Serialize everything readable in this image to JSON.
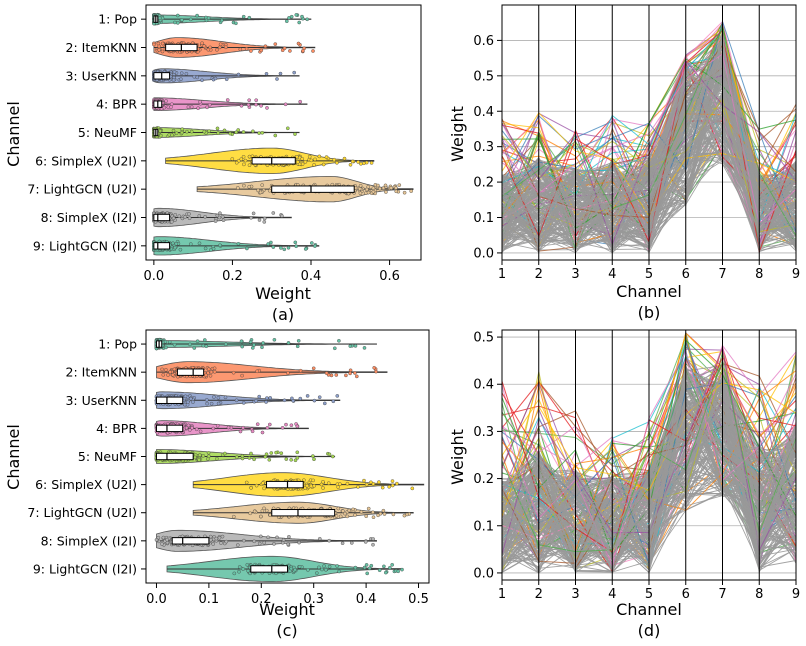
{
  "chart_data": [
    {
      "panel": "a",
      "type": "violin",
      "caption": "(a)",
      "xlabel": "Weight",
      "ylabel": "Channel",
      "xlim": [
        -0.02,
        0.68
      ],
      "xticks": [
        0.0,
        0.2,
        0.4,
        0.6
      ],
      "xtick_labels": [
        "0.0",
        "0.2",
        "0.4",
        "0.6"
      ],
      "channels": [
        {
          "label": "1: Pop",
          "color": "#66c2a5",
          "min": 0.0,
          "q1": 0.0,
          "median": 0.005,
          "q3": 0.01,
          "max": 0.4,
          "mode": 0.0,
          "width": 0.3
        },
        {
          "label": "2: ItemKNN",
          "color": "#fc8d62",
          "min": 0.0,
          "q1": 0.03,
          "median": 0.07,
          "q3": 0.11,
          "max": 0.41,
          "mode": 0.06,
          "width": 0.7
        },
        {
          "label": "3: UserKNN",
          "color": "#8da0cb",
          "min": 0.0,
          "q1": 0.0,
          "median": 0.02,
          "q3": 0.04,
          "max": 0.37,
          "mode": 0.02,
          "width": 0.5
        },
        {
          "label": "4: BPR",
          "color": "#e78ac3",
          "min": 0.0,
          "q1": 0.0,
          "median": 0.01,
          "q3": 0.02,
          "max": 0.39,
          "mode": 0.0,
          "width": 0.45
        },
        {
          "label": "5: NeuMF",
          "color": "#a6d854",
          "min": 0.0,
          "q1": 0.0,
          "median": 0.005,
          "q3": 0.01,
          "max": 0.37,
          "mode": 0.0,
          "width": 0.35
        },
        {
          "label": "6: SimpleX (U2I)",
          "color": "#ffd92f",
          "min": 0.03,
          "q1": 0.25,
          "median": 0.3,
          "q3": 0.36,
          "max": 0.56,
          "mode": 0.3,
          "width": 0.9
        },
        {
          "label": "7: LightGCN (U2I)",
          "color": "#e5c494",
          "min": 0.11,
          "q1": 0.3,
          "median": 0.4,
          "q3": 0.51,
          "max": 0.66,
          "mode": 0.45,
          "width": 0.9
        },
        {
          "label": "8: SimpleX (I2I)",
          "color": "#b3b3b3",
          "min": 0.0,
          "q1": 0.0,
          "median": 0.01,
          "q3": 0.04,
          "max": 0.35,
          "mode": 0.01,
          "width": 0.65
        },
        {
          "label": "9: LightGCN (I2I)",
          "color": "#66c2a5",
          "min": 0.0,
          "q1": 0.0,
          "median": 0.01,
          "q3": 0.04,
          "max": 0.42,
          "mode": 0.01,
          "width": 0.65
        }
      ]
    },
    {
      "panel": "b",
      "type": "parallel_coordinates",
      "caption": "(b)",
      "xlabel": "Channel",
      "ylabel": "Weight",
      "xlim": [
        1,
        9
      ],
      "ylim": [
        -0.02,
        0.7
      ],
      "xticks": [
        1,
        2,
        3,
        4,
        5,
        6,
        7,
        8,
        9
      ],
      "yticks": [
        0.0,
        0.1,
        0.2,
        0.3,
        0.4,
        0.5,
        0.6
      ],
      "ytick_labels": [
        "0.0",
        "0.1",
        "0.2",
        "0.3",
        "0.4",
        "0.5",
        "0.6"
      ],
      "band_lower": [
        0.0,
        0.0,
        0.0,
        0.0,
        0.0,
        0.13,
        0.25,
        0.0,
        0.0
      ],
      "band_upper": [
        0.22,
        0.27,
        0.24,
        0.26,
        0.27,
        0.53,
        0.62,
        0.22,
        0.26
      ],
      "line_max": [
        0.38,
        0.4,
        0.37,
        0.39,
        0.37,
        0.56,
        0.66,
        0.35,
        0.42
      ]
    },
    {
      "panel": "c",
      "type": "violin",
      "caption": "(c)",
      "xlabel": "Weight",
      "ylabel": "Channel",
      "xlim": [
        -0.02,
        0.52
      ],
      "xticks": [
        0.0,
        0.1,
        0.2,
        0.3,
        0.4,
        0.5
      ],
      "xtick_labels": [
        "0.0",
        "0.1",
        "0.2",
        "0.3",
        "0.4",
        "0.5"
      ],
      "channels": [
        {
          "label": "1: Pop",
          "color": "#66c2a5",
          "min": 0.0,
          "q1": 0.0,
          "median": 0.005,
          "q3": 0.01,
          "max": 0.42,
          "mode": 0.0,
          "width": 0.25
        },
        {
          "label": "2: ItemKNN",
          "color": "#fc8d62",
          "min": 0.0,
          "q1": 0.04,
          "median": 0.07,
          "q3": 0.09,
          "max": 0.44,
          "mode": 0.06,
          "width": 0.75
        },
        {
          "label": "3: UserKNN",
          "color": "#8da0cb",
          "min": 0.0,
          "q1": 0.0,
          "median": 0.02,
          "q3": 0.05,
          "max": 0.35,
          "mode": 0.01,
          "width": 0.6
        },
        {
          "label": "4: BPR",
          "color": "#e78ac3",
          "min": 0.0,
          "q1": 0.0,
          "median": 0.02,
          "q3": 0.05,
          "max": 0.29,
          "mode": 0.01,
          "width": 0.55
        },
        {
          "label": "5: NeuMF",
          "color": "#a6d854",
          "min": 0.0,
          "q1": 0.0,
          "median": 0.02,
          "q3": 0.07,
          "max": 0.34,
          "mode": 0.0,
          "width": 0.5
        },
        {
          "label": "6: SimpleX (U2I)",
          "color": "#ffd92f",
          "min": 0.07,
          "q1": 0.21,
          "median": 0.25,
          "q3": 0.28,
          "max": 0.51,
          "mode": 0.24,
          "width": 0.85
        },
        {
          "label": "7: LightGCN (U2I)",
          "color": "#e5c494",
          "min": 0.07,
          "q1": 0.22,
          "median": 0.27,
          "q3": 0.34,
          "max": 0.49,
          "mode": 0.27,
          "width": 0.75
        },
        {
          "label": "8: SimpleX (I2I)",
          "color": "#b3b3b3",
          "min": 0.0,
          "q1": 0.03,
          "median": 0.05,
          "q3": 0.1,
          "max": 0.42,
          "mode": 0.04,
          "width": 0.75
        },
        {
          "label": "9: LightGCN (I2I)",
          "color": "#66c2a5",
          "min": 0.02,
          "q1": 0.18,
          "median": 0.22,
          "q3": 0.25,
          "max": 0.47,
          "mode": 0.22,
          "width": 0.9
        }
      ]
    },
    {
      "panel": "d",
      "type": "parallel_coordinates",
      "caption": "(d)",
      "xlabel": "Channel",
      "ylabel": "Weight",
      "xlim": [
        1,
        9
      ],
      "ylim": [
        -0.015,
        0.515
      ],
      "xticks": [
        1,
        2,
        3,
        4,
        5,
        6,
        7,
        8,
        9
      ],
      "yticks": [
        0.0,
        0.1,
        0.2,
        0.3,
        0.4,
        0.5
      ],
      "ytick_labels": [
        "0.0",
        "0.1",
        "0.2",
        "0.3",
        "0.4",
        "0.5"
      ],
      "band_lower": [
        0.0,
        0.0,
        0.0,
        0.0,
        0.0,
        0.13,
        0.16,
        0.0,
        0.02
      ],
      "band_upper": [
        0.2,
        0.26,
        0.22,
        0.21,
        0.22,
        0.44,
        0.44,
        0.27,
        0.32
      ],
      "line_max": [
        0.41,
        0.43,
        0.35,
        0.29,
        0.34,
        0.51,
        0.49,
        0.42,
        0.47
      ]
    }
  ]
}
